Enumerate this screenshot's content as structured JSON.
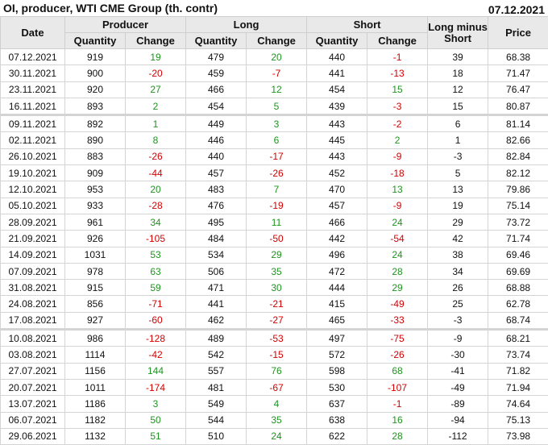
{
  "header": {
    "title": "OI, producer, WTI CME Group (th. contr)",
    "date": "07.12.2021"
  },
  "columns": {
    "date": "Date",
    "producer": "Producer",
    "long": "Long",
    "short": "Short",
    "long_minus_short": "Long minus Short",
    "price": "Price",
    "quantity": "Quantity",
    "change": "Change"
  },
  "colors": {
    "positive": "#1e951e",
    "negative": "#d40000",
    "header_bg": "#e9e9e9"
  },
  "rows": [
    [
      "07.12.2021",
      "919",
      "19",
      "479",
      "20",
      "440",
      "-1",
      "39",
      "68.38"
    ],
    [
      "30.11.2021",
      "900",
      "-20",
      "459",
      "-7",
      "441",
      "-13",
      "18",
      "71.47"
    ],
    [
      "23.11.2021",
      "920",
      "27",
      "466",
      "12",
      "454",
      "15",
      "12",
      "76.47"
    ],
    [
      "16.11.2021",
      "893",
      "2",
      "454",
      "5",
      "439",
      "-3",
      "15",
      "80.87"
    ],
    [
      "09.11.2021",
      "892",
      "1",
      "449",
      "3",
      "443",
      "-2",
      "6",
      "81.14"
    ],
    [
      "02.11.2021",
      "890",
      "8",
      "446",
      "6",
      "445",
      "2",
      "1",
      "82.66"
    ],
    [
      "26.10.2021",
      "883",
      "-26",
      "440",
      "-17",
      "443",
      "-9",
      "-3",
      "82.84"
    ],
    [
      "19.10.2021",
      "909",
      "-44",
      "457",
      "-26",
      "452",
      "-18",
      "5",
      "82.12"
    ],
    [
      "12.10.2021",
      "953",
      "20",
      "483",
      "7",
      "470",
      "13",
      "13",
      "79.86"
    ],
    [
      "05.10.2021",
      "933",
      "-28",
      "476",
      "-19",
      "457",
      "-9",
      "19",
      "75.14"
    ],
    [
      "28.09.2021",
      "961",
      "34",
      "495",
      "11",
      "466",
      "24",
      "29",
      "73.72"
    ],
    [
      "21.09.2021",
      "926",
      "-105",
      "484",
      "-50",
      "442",
      "-54",
      "42",
      "71.74"
    ],
    [
      "14.09.2021",
      "1031",
      "53",
      "534",
      "29",
      "496",
      "24",
      "38",
      "69.46"
    ],
    [
      "07.09.2021",
      "978",
      "63",
      "506",
      "35",
      "472",
      "28",
      "34",
      "69.69"
    ],
    [
      "31.08.2021",
      "915",
      "59",
      "471",
      "30",
      "444",
      "29",
      "26",
      "68.88"
    ],
    [
      "24.08.2021",
      "856",
      "-71",
      "441",
      "-21",
      "415",
      "-49",
      "25",
      "62.78"
    ],
    [
      "17.08.2021",
      "927",
      "-60",
      "462",
      "-27",
      "465",
      "-33",
      "-3",
      "68.74"
    ],
    [
      "10.08.2021",
      "986",
      "-128",
      "489",
      "-53",
      "497",
      "-75",
      "-9",
      "68.21"
    ],
    [
      "03.08.2021",
      "1114",
      "-42",
      "542",
      "-15",
      "572",
      "-26",
      "-30",
      "73.74"
    ],
    [
      "27.07.2021",
      "1156",
      "144",
      "557",
      "76",
      "598",
      "68",
      "-41",
      "71.82"
    ],
    [
      "20.07.2021",
      "1011",
      "-174",
      "481",
      "-67",
      "530",
      "-107",
      "-49",
      "71.94"
    ],
    [
      "13.07.2021",
      "1186",
      "3",
      "549",
      "4",
      "637",
      "-1",
      "-89",
      "74.64"
    ],
    [
      "06.07.2021",
      "1182",
      "50",
      "544",
      "35",
      "638",
      "16",
      "-94",
      "75.13"
    ],
    [
      "29.06.2021",
      "1132",
      "51",
      "510",
      "24",
      "622",
      "28",
      "-112",
      "73.98"
    ]
  ]
}
